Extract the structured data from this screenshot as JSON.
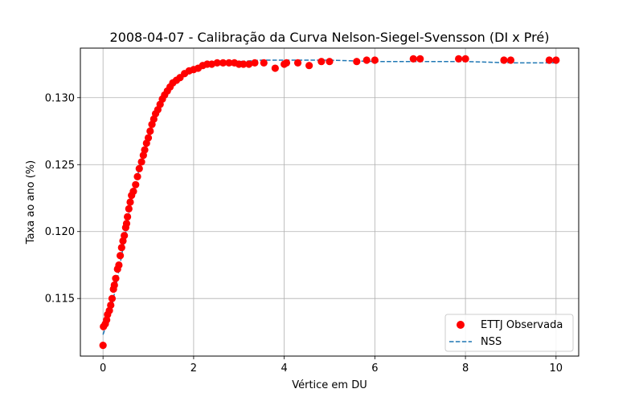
{
  "chart_data": {
    "type": "scatter",
    "title": "2008-04-07 - Calibração da Curva Nelson-Siegel-Svensson (DI x Pré)",
    "xlabel": "Vértice em DU",
    "ylabel": "Taxa ao ano (%)",
    "xlim": [
      -0.5,
      10.5
    ],
    "ylim": [
      0.1107,
      0.1337
    ],
    "x_ticks": [
      0,
      2,
      4,
      6,
      8,
      10
    ],
    "x_tick_labels": [
      "0",
      "2",
      "4",
      "6",
      "8",
      "10"
    ],
    "y_ticks": [
      0.115,
      0.12,
      0.125,
      0.13
    ],
    "y_tick_labels": [
      "0.115",
      "0.120",
      "0.125",
      "0.130"
    ],
    "grid": true,
    "legend_position": "lower-right",
    "colors": {
      "observed": "#ff0000",
      "fit": "#1f77b4"
    },
    "series": [
      {
        "name": "ETTJ Observada",
        "kind": "scatter",
        "points": [
          [
            0.0,
            0.1115
          ],
          [
            0.01,
            0.1129
          ],
          [
            0.05,
            0.1131
          ],
          [
            0.08,
            0.1134
          ],
          [
            0.1,
            0.1138
          ],
          [
            0.14,
            0.1141
          ],
          [
            0.17,
            0.1145
          ],
          [
            0.2,
            0.115
          ],
          [
            0.23,
            0.1157
          ],
          [
            0.25,
            0.116
          ],
          [
            0.28,
            0.1165
          ],
          [
            0.32,
            0.1172
          ],
          [
            0.35,
            0.1175
          ],
          [
            0.38,
            0.1182
          ],
          [
            0.41,
            0.1188
          ],
          [
            0.44,
            0.1193
          ],
          [
            0.47,
            0.1197
          ],
          [
            0.5,
            0.1203
          ],
          [
            0.52,
            0.1206
          ],
          [
            0.54,
            0.1211
          ],
          [
            0.57,
            0.1217
          ],
          [
            0.6,
            0.1222
          ],
          [
            0.63,
            0.1227
          ],
          [
            0.67,
            0.123
          ],
          [
            0.72,
            0.1235
          ],
          [
            0.76,
            0.1241
          ],
          [
            0.8,
            0.1247
          ],
          [
            0.85,
            0.1252
          ],
          [
            0.89,
            0.1257
          ],
          [
            0.92,
            0.1261
          ],
          [
            0.96,
            0.1266
          ],
          [
            1.0,
            0.127
          ],
          [
            1.04,
            0.1275
          ],
          [
            1.08,
            0.128
          ],
          [
            1.12,
            0.1284
          ],
          [
            1.16,
            0.1288
          ],
          [
            1.21,
            0.1291
          ],
          [
            1.26,
            0.1295
          ],
          [
            1.31,
            0.1299
          ],
          [
            1.36,
            0.1302
          ],
          [
            1.42,
            0.1305
          ],
          [
            1.48,
            0.1308
          ],
          [
            1.54,
            0.1311
          ],
          [
            1.62,
            0.1313
          ],
          [
            1.7,
            0.1315
          ],
          [
            1.8,
            0.1318
          ],
          [
            1.9,
            0.132
          ],
          [
            2.0,
            0.1321
          ],
          [
            2.1,
            0.1322
          ],
          [
            2.2,
            0.1324
          ],
          [
            2.3,
            0.1325
          ],
          [
            2.4,
            0.1325
          ],
          [
            2.52,
            0.1326
          ],
          [
            2.65,
            0.1326
          ],
          [
            2.78,
            0.1326
          ],
          [
            2.9,
            0.1326
          ],
          [
            3.0,
            0.1325
          ],
          [
            3.1,
            0.1325
          ],
          [
            3.22,
            0.1325
          ],
          [
            3.35,
            0.1326
          ],
          [
            3.55,
            0.1326
          ],
          [
            3.8,
            0.1322
          ],
          [
            4.0,
            0.1325
          ],
          [
            4.05,
            0.1326
          ],
          [
            4.3,
            0.1326
          ],
          [
            4.55,
            0.1324
          ],
          [
            4.82,
            0.1327
          ],
          [
            5.0,
            0.1327
          ],
          [
            5.6,
            0.1327
          ],
          [
            5.82,
            0.1328
          ],
          [
            6.0,
            0.1328
          ],
          [
            6.85,
            0.1329
          ],
          [
            7.0,
            0.1329
          ],
          [
            7.85,
            0.1329
          ],
          [
            8.0,
            0.1329
          ],
          [
            8.85,
            0.1328
          ],
          [
            9.0,
            0.1328
          ],
          [
            9.85,
            0.1328
          ],
          [
            10.0,
            0.1328
          ]
        ]
      },
      {
        "name": "NSS",
        "kind": "line",
        "style": "dashed",
        "points": [
          [
            0.0,
            0.1123
          ],
          [
            0.1,
            0.1133
          ],
          [
            0.2,
            0.1145
          ],
          [
            0.3,
            0.1162
          ],
          [
            0.4,
            0.118
          ],
          [
            0.5,
            0.1199
          ],
          [
            0.6,
            0.1219
          ],
          [
            0.7,
            0.1233
          ],
          [
            0.8,
            0.1247
          ],
          [
            0.9,
            0.1259
          ],
          [
            1.0,
            0.127
          ],
          [
            1.1,
            0.1281
          ],
          [
            1.2,
            0.129
          ],
          [
            1.3,
            0.1298
          ],
          [
            1.4,
            0.1304
          ],
          [
            1.5,
            0.1309
          ],
          [
            1.6,
            0.1313
          ],
          [
            1.7,
            0.1316
          ],
          [
            1.8,
            0.1318
          ],
          [
            2.0,
            0.1321
          ],
          [
            2.2,
            0.1324
          ],
          [
            2.5,
            0.1326
          ],
          [
            3.0,
            0.1327
          ],
          [
            3.5,
            0.1328
          ],
          [
            4.0,
            0.1328
          ],
          [
            5.0,
            0.1328
          ],
          [
            6.0,
            0.1327
          ],
          [
            7.0,
            0.1327
          ],
          [
            8.0,
            0.1327
          ],
          [
            9.0,
            0.1326
          ],
          [
            10.0,
            0.1326
          ]
        ]
      }
    ]
  }
}
